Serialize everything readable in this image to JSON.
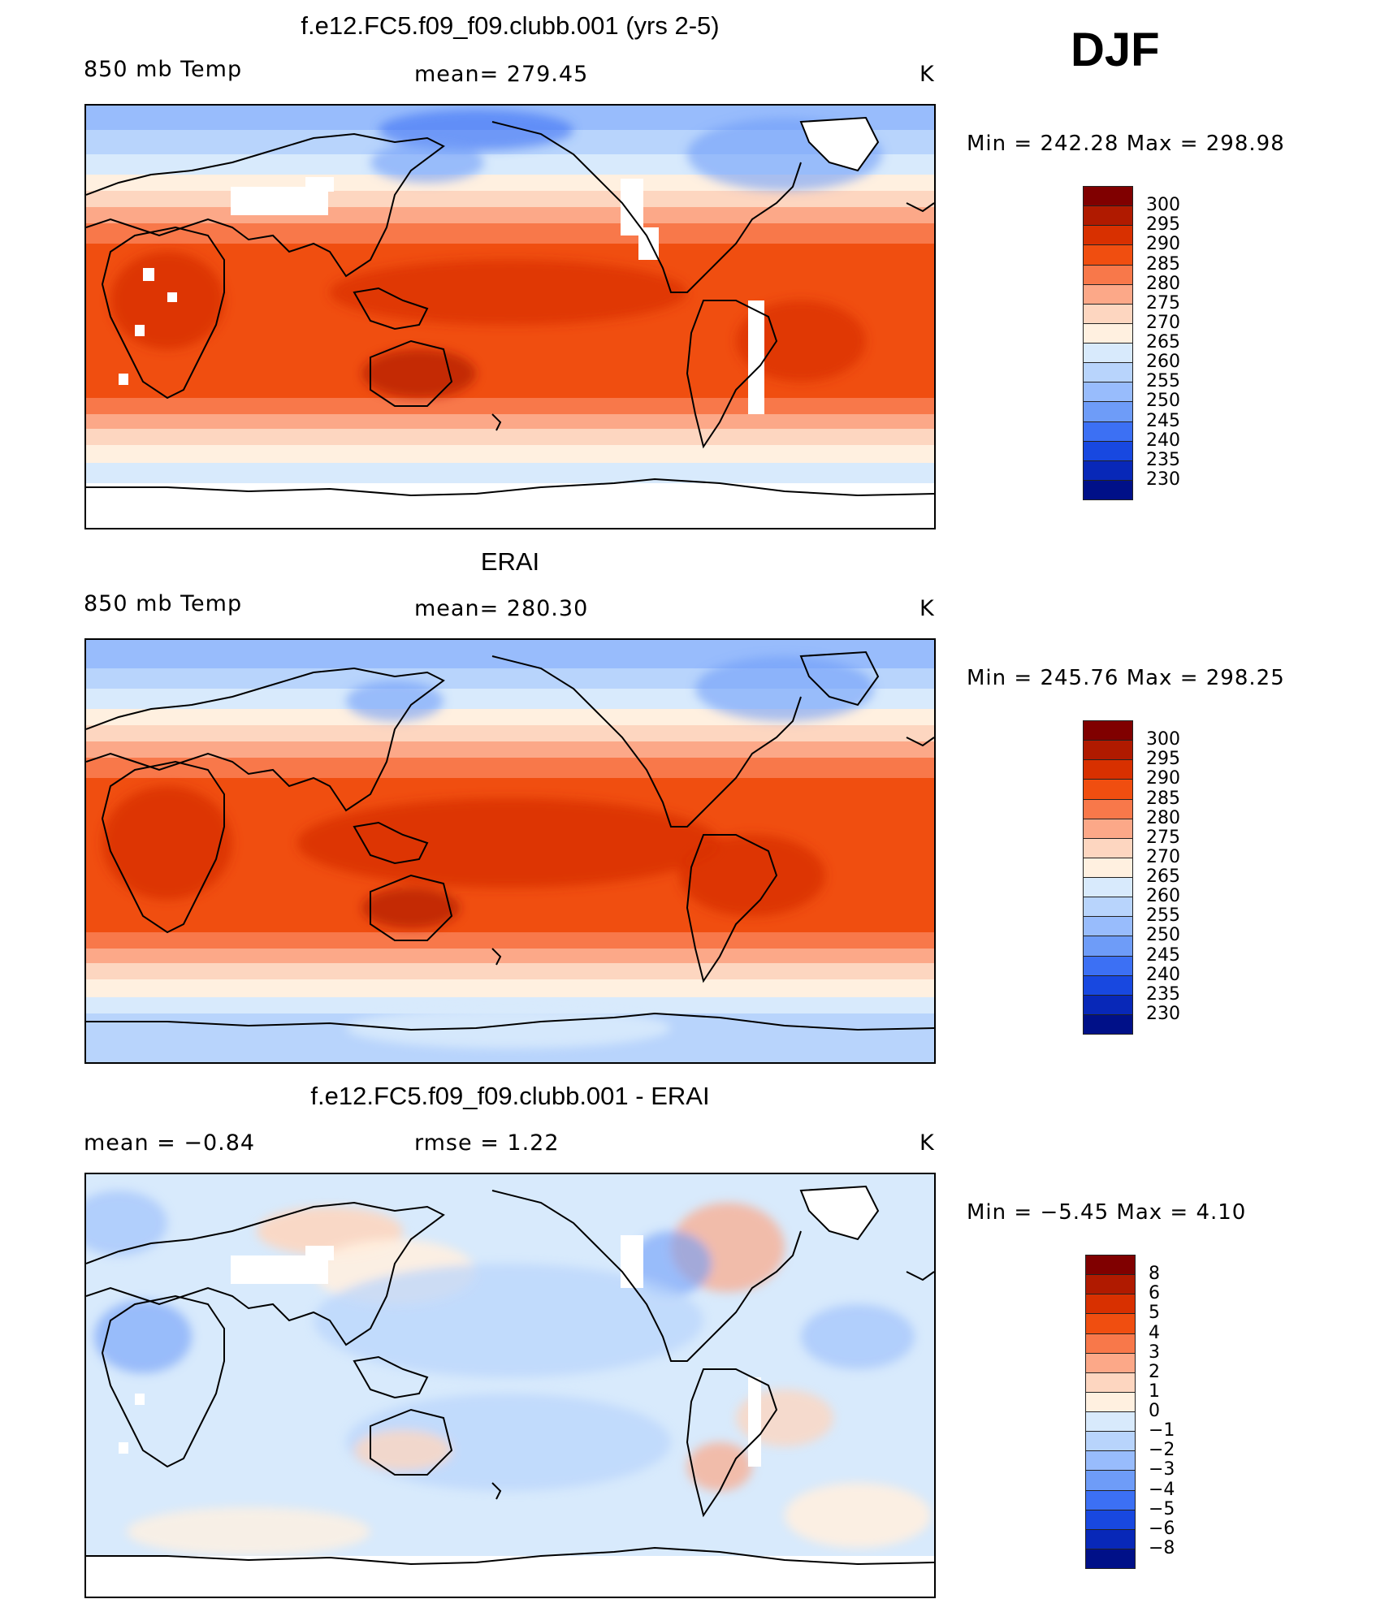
{
  "season": "DJF",
  "panels": [
    {
      "id": "model",
      "title": "f.e12.FC5.f09_f09.clubb.001 (yrs 2-5)",
      "left_label": "850 mb Temp",
      "center_label": "mean=  279.45",
      "units": "K",
      "minmax": "Min  =  242.28  Max  =  298.98",
      "colorbar": {
        "colors": [
          "#800000",
          "#b01a00",
          "#d83000",
          "#f04e10",
          "#f8784a",
          "#fca888",
          "#fdd6c0",
          "#fff0e0",
          "#d8eafc",
          "#b8d4fc",
          "#98bcfc",
          "#6e9cf8",
          "#3c70f4",
          "#1848e0",
          "#0828b8",
          "#001088"
        ],
        "labels": [
          "300",
          "295",
          "290",
          "285",
          "280",
          "275",
          "270",
          "265",
          "260",
          "255",
          "250",
          "245",
          "240",
          "235",
          "230"
        ]
      }
    },
    {
      "id": "obs",
      "title": "ERAI",
      "left_label": "850 mb Temp",
      "center_label": "mean=  280.30",
      "units": "K",
      "minmax": "Min  =  245.76  Max  =  298.25",
      "colorbar": {
        "colors": [
          "#800000",
          "#b01a00",
          "#d83000",
          "#f04e10",
          "#f8784a",
          "#fca888",
          "#fdd6c0",
          "#fff0e0",
          "#d8eafc",
          "#b8d4fc",
          "#98bcfc",
          "#6e9cf8",
          "#3c70f4",
          "#1848e0",
          "#0828b8",
          "#001088"
        ],
        "labels": [
          "300",
          "295",
          "290",
          "285",
          "280",
          "275",
          "270",
          "265",
          "260",
          "255",
          "250",
          "245",
          "240",
          "235",
          "230"
        ]
      }
    },
    {
      "id": "diff",
      "title": "f.e12.FC5.f09_f09.clubb.001 - ERAI",
      "left_label": "mean  =    −0.84",
      "center_label": "rmse  =     1.22",
      "units": "K",
      "minmax": "Min  =    −5.45  Max  =      4.10",
      "colorbar": {
        "colors": [
          "#800000",
          "#b01a00",
          "#d83000",
          "#f04e10",
          "#f8784a",
          "#fca888",
          "#fdd6c0",
          "#fff0e0",
          "#d8eafc",
          "#b8d4fc",
          "#98bcfc",
          "#6e9cf8",
          "#3c70f4",
          "#1848e0",
          "#0828b8",
          "#001088"
        ],
        "labels": [
          "8",
          "6",
          "5",
          "4",
          "3",
          "2",
          "1",
          "0",
          "−1",
          "−2",
          "−3",
          "−4",
          "−5",
          "−6",
          "−8"
        ]
      }
    }
  ]
}
